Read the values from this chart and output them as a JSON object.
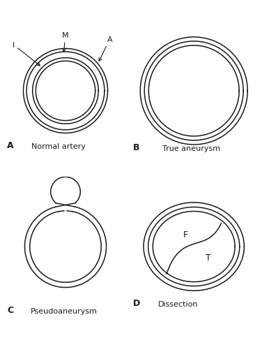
{
  "bg_color": "#ffffff",
  "line_color": "#1a1a1a",
  "lw": 1.1,
  "label_A": "A",
  "label_B": "B",
  "label_C": "C",
  "label_D": "D",
  "title_A": "Normal artery",
  "title_B": "True aneurysm",
  "title_C": "Pseudoaneurysm",
  "title_D": "Dissection",
  "annot_I": "I",
  "annot_M": "M",
  "annot_A": "A",
  "label_F": "F",
  "label_T": "T",
  "fs_label": 9,
  "fs_title": 8,
  "fs_annot": 8
}
